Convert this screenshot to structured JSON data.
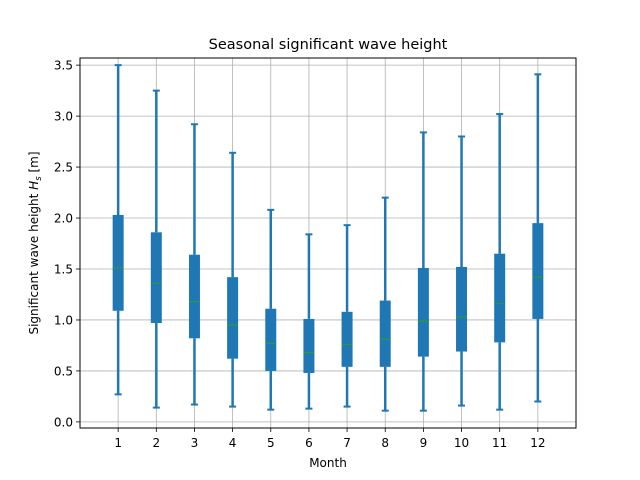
{
  "chart_data": {
    "type": "boxplot",
    "title": "Seasonal significant wave height",
    "xlabel": "Month",
    "ylabel_main": "Significant wave height ",
    "ylabel_symbol": "H",
    "ylabel_subscript": "s",
    "ylabel_unit": " [m]",
    "ylim": [
      -0.06,
      3.57
    ],
    "yticks": [
      "0.0",
      "0.5",
      "1.0",
      "1.5",
      "2.0",
      "2.5",
      "3.0",
      "3.5"
    ],
    "grid": true,
    "categories": [
      "1",
      "2",
      "3",
      "4",
      "5",
      "6",
      "7",
      "8",
      "9",
      "10",
      "11",
      "12"
    ],
    "boxes": [
      {
        "min": 0.27,
        "q1": 1.09,
        "median": 1.51,
        "q3": 2.03,
        "max": 3.5
      },
      {
        "min": 0.14,
        "q1": 0.97,
        "median": 1.36,
        "q3": 1.86,
        "max": 3.25
      },
      {
        "min": 0.17,
        "q1": 0.82,
        "median": 1.18,
        "q3": 1.64,
        "max": 2.92
      },
      {
        "min": 0.15,
        "q1": 0.62,
        "median": 0.95,
        "q3": 1.42,
        "max": 2.64
      },
      {
        "min": 0.12,
        "q1": 0.5,
        "median": 0.77,
        "q3": 1.11,
        "max": 2.08
      },
      {
        "min": 0.13,
        "q1": 0.48,
        "median": 0.68,
        "q3": 1.01,
        "max": 1.84
      },
      {
        "min": 0.15,
        "q1": 0.54,
        "median": 0.76,
        "q3": 1.08,
        "max": 1.93
      },
      {
        "min": 0.11,
        "q1": 0.54,
        "median": 0.81,
        "q3": 1.19,
        "max": 2.2
      },
      {
        "min": 0.11,
        "q1": 0.64,
        "median": 0.99,
        "q3": 1.51,
        "max": 2.84
      },
      {
        "min": 0.16,
        "q1": 0.69,
        "median": 1.03,
        "q3": 1.52,
        "max": 2.8
      },
      {
        "min": 0.12,
        "q1": 0.78,
        "median": 1.16,
        "q3": 1.65,
        "max": 3.02
      },
      {
        "min": 0.2,
        "q1": 1.01,
        "median": 1.42,
        "q3": 1.95,
        "max": 3.41
      }
    ],
    "colors": {
      "box": "#1f77b4",
      "median": "#2ca02c",
      "grid": "#b0b0b0",
      "axis": "#000000"
    }
  }
}
